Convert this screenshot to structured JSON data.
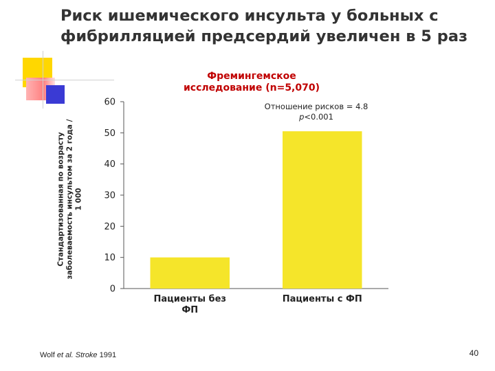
{
  "slide": {
    "title": "Риск ишемического инсульта у больных с фибрилляцией предсердий увеличен в 5 раз",
    "source_prefix": "Wolf ",
    "source_italic": "et al. Stroke",
    "source_suffix": " 1991",
    "page_number": "40"
  },
  "colors": {
    "bar": "#f5e52a",
    "chart_title": "#c00000",
    "axis": "#555555"
  },
  "chart_data": {
    "type": "bar",
    "title": "Фремингемское исследование (n=5,070)",
    "ylabel": "Стандартизованная по возрасту заболеваемость инсультом за 2 года / 1 000",
    "xlabel": "",
    "categories": [
      "Пациенты без ФП",
      "Пациенты с ФП"
    ],
    "values": [
      10,
      50.5
    ],
    "ylim": [
      0,
      60
    ],
    "yticks": [
      0,
      10,
      20,
      30,
      40,
      50,
      60
    ],
    "grid": false,
    "annotation_line1": "Отношение рисков = 4.8",
    "annotation_p": "p",
    "annotation_line2": "<0.001"
  }
}
